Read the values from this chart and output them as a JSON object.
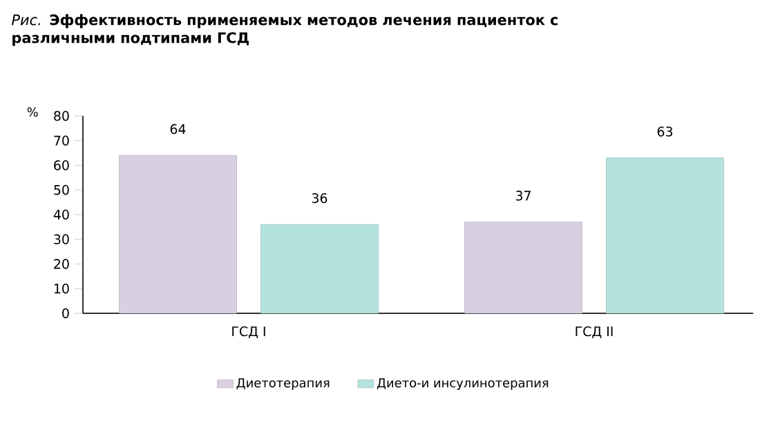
{
  "chart_data": {
    "type": "bar",
    "title": "*Рис.* **Эффективность применяемых методов лечения пациенток с различными подтипами ГСД**",
    "ylabel": "%",
    "categories": [
      "ГСД I",
      "ГСД II"
    ],
    "series": [
      {
        "name": "Диетотерапия",
        "color": "#d8cfe0",
        "values": [
          64,
          37
        ]
      },
      {
        "name": "Дието-и инсулинотерапия",
        "color": "#b4e2dd",
        "values": [
          36,
          63
        ]
      }
    ],
    "ylim": [
      0,
      80
    ],
    "yticks": [
      0,
      10,
      20,
      30,
      40,
      50,
      60,
      70,
      80
    ],
    "data_labels": true,
    "legend": "bottom",
    "grid": false
  }
}
